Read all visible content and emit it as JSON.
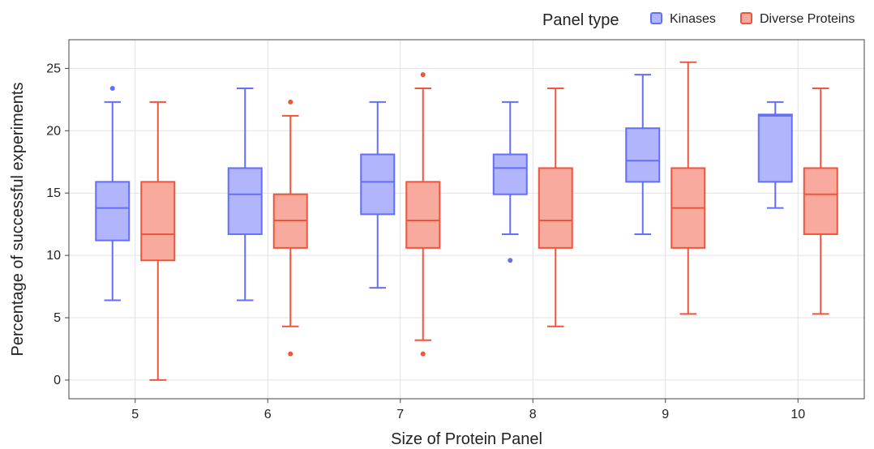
{
  "chart_data": {
    "type": "box",
    "xlabel": "Size of Protein Panel",
    "ylabel": "Percentage of successful experiments",
    "ylim": [
      -1.5,
      27.3
    ],
    "yticks": [
      0,
      5,
      10,
      15,
      20,
      25
    ],
    "categories": [
      "5",
      "6",
      "7",
      "8",
      "9",
      "10"
    ],
    "grid": true,
    "legend": {
      "title": "Panel type",
      "placement": "top-right",
      "items": [
        "Kinases",
        "Diverse Proteins"
      ]
    },
    "series": [
      {
        "name": "Kinases",
        "stroke": "#636efa",
        "fill": "#b1b6fc",
        "boxes": [
          {
            "category": "5",
            "min": 6.4,
            "q1": 11.2,
            "median": 13.8,
            "q3": 15.9,
            "max": 22.3,
            "outliers": [
              23.4
            ]
          },
          {
            "category": "6",
            "min": 6.4,
            "q1": 11.7,
            "median": 14.9,
            "q3": 17.0,
            "max": 23.4,
            "outliers": []
          },
          {
            "category": "7",
            "min": 7.4,
            "q1": 13.3,
            "median": 15.9,
            "q3": 18.1,
            "max": 22.3,
            "outliers": []
          },
          {
            "category": "8",
            "min": 11.7,
            "q1": 14.9,
            "median": 17.0,
            "q3": 18.1,
            "max": 22.3,
            "outliers": [
              9.6
            ]
          },
          {
            "category": "9",
            "min": 11.7,
            "q1": 15.9,
            "median": 17.6,
            "q3": 20.2,
            "max": 24.5,
            "outliers": []
          },
          {
            "category": "10",
            "min": 13.8,
            "q1": 15.9,
            "median": 21.2,
            "q3": 21.3,
            "max": 22.3,
            "outliers": []
          }
        ]
      },
      {
        "name": "Diverse Proteins",
        "stroke": "#ef553b",
        "fill": "#f7aa9d",
        "boxes": [
          {
            "category": "5",
            "min": 0.0,
            "q1": 9.6,
            "median": 11.7,
            "q3": 15.9,
            "max": 22.3,
            "outliers": []
          },
          {
            "category": "6",
            "min": 4.3,
            "q1": 10.6,
            "median": 12.8,
            "q3": 14.9,
            "max": 21.2,
            "outliers": [
              2.1,
              22.3
            ]
          },
          {
            "category": "7",
            "min": 3.2,
            "q1": 10.6,
            "median": 12.8,
            "q3": 15.9,
            "max": 23.4,
            "outliers": [
              2.1,
              24.5
            ]
          },
          {
            "category": "8",
            "min": 4.3,
            "q1": 10.6,
            "median": 12.8,
            "q3": 17.0,
            "max": 23.4,
            "outliers": []
          },
          {
            "category": "9",
            "min": 5.3,
            "q1": 10.6,
            "median": 13.8,
            "q3": 17.0,
            "max": 25.5,
            "outliers": []
          },
          {
            "category": "10",
            "min": 5.3,
            "q1": 11.7,
            "median": 14.9,
            "q3": 17.0,
            "max": 23.4,
            "outliers": []
          }
        ]
      }
    ]
  }
}
